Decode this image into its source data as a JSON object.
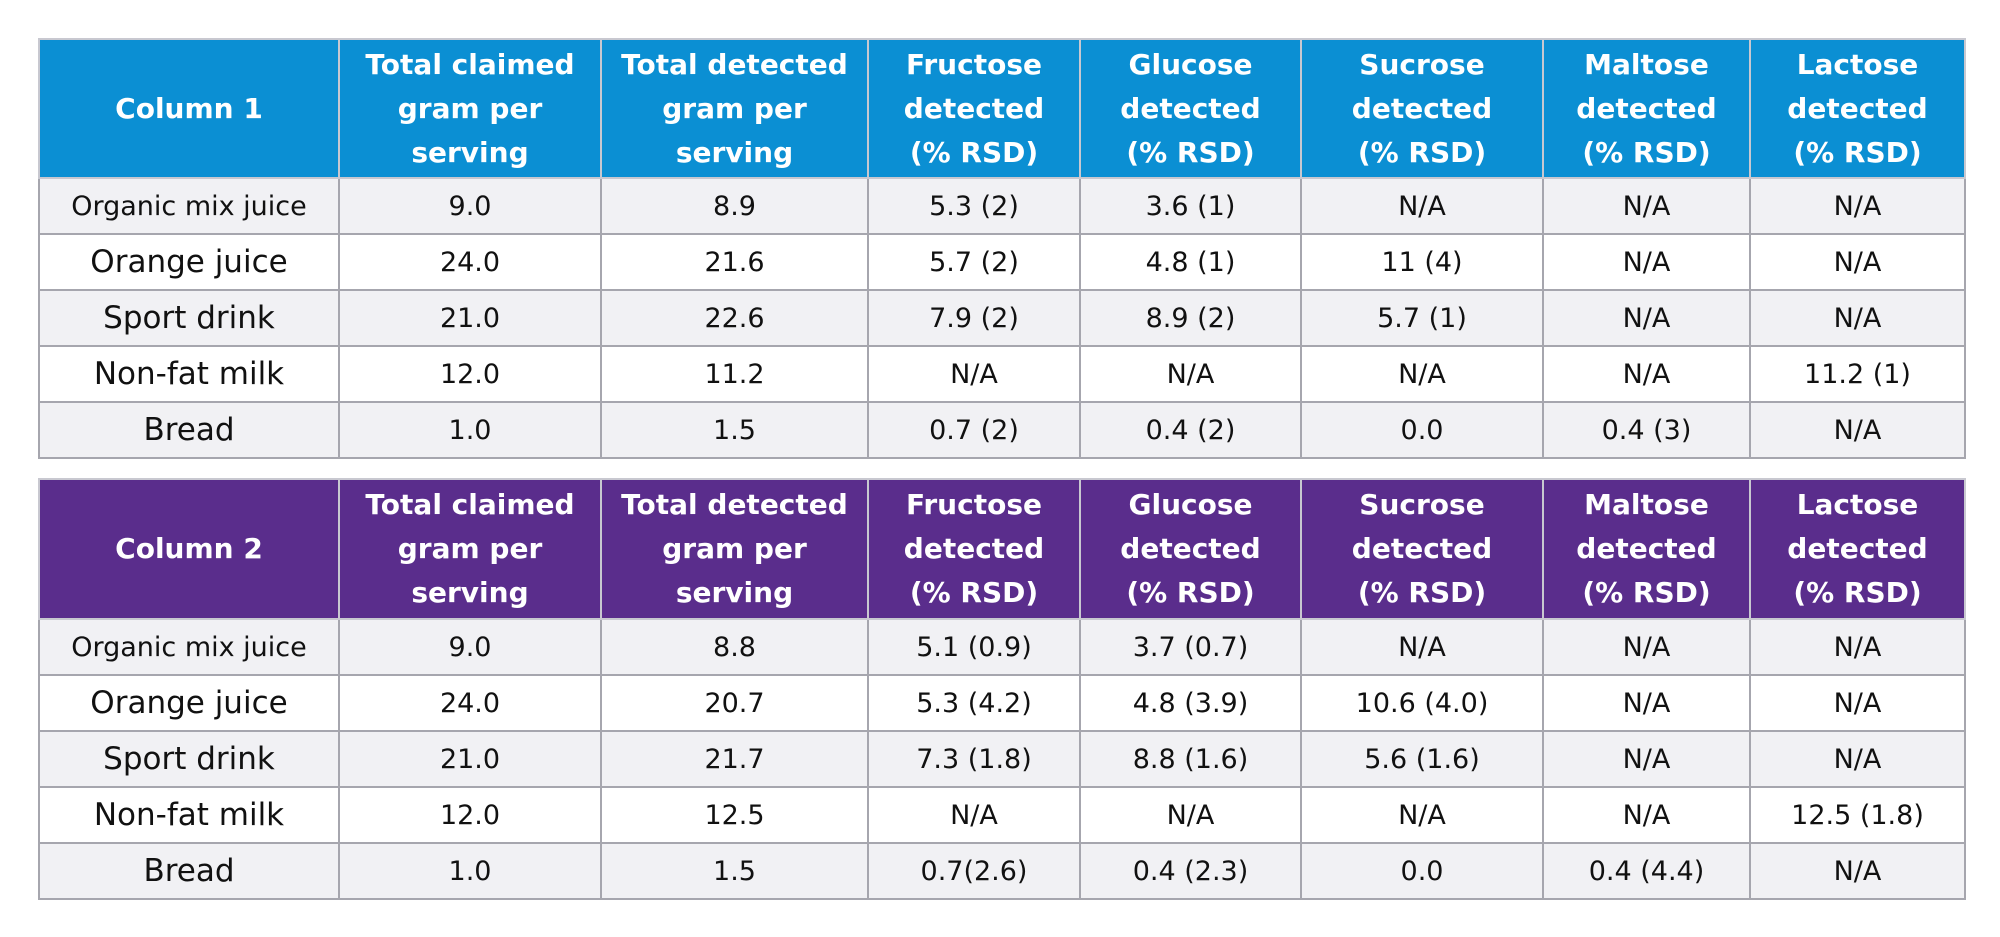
{
  "tables": [
    {
      "header": [
        [
          "Column 1"
        ],
        [
          "Total claimed",
          "gram per",
          "serving"
        ],
        [
          "Total detected",
          "gram per",
          "serving"
        ],
        [
          "Fructose",
          "detected",
          "(% RSD)"
        ],
        [
          "Glucose",
          "detected",
          "(% RSD)"
        ],
        [
          "Sucrose",
          "detected",
          "(% RSD)"
        ],
        [
          "Maltose",
          "detected",
          "(% RSD)"
        ],
        [
          "Lactose",
          "detected",
          "(% RSD)"
        ]
      ],
      "rows": [
        [
          "Organic mix juice",
          "9.0",
          "8.9",
          "5.3 (2)",
          "3.6 (1)",
          "N/A",
          "N/A",
          "N/A"
        ],
        [
          "Orange juice",
          "24.0",
          "21.6",
          "5.7 (2)",
          "4.8 (1)",
          "11 (4)",
          "N/A",
          "N/A"
        ],
        [
          "Sport drink",
          "21.0",
          "22.6",
          "7.9 (2)",
          "8.9 (2)",
          "5.7 (1)",
          "N/A",
          "N/A"
        ],
        [
          "Non-fat milk",
          "12.0",
          "11.2",
          "N/A",
          "N/A",
          "N/A",
          "N/A",
          "11.2 (1)"
        ],
        [
          "Bread",
          "1.0",
          "1.5",
          "0.7 (2)",
          "0.4 (2)",
          "0.0",
          "0.4 (3)",
          "N/A"
        ]
      ]
    },
    {
      "header": [
        [
          "Column 2"
        ],
        [
          "Total claimed",
          "gram per",
          "serving"
        ],
        [
          "Total detected",
          "gram per",
          "serving"
        ],
        [
          "Fructose",
          "detected",
          "(% RSD)"
        ],
        [
          "Glucose",
          "detected",
          "(% RSD)"
        ],
        [
          "Sucrose",
          "detected",
          "(% RSD)"
        ],
        [
          "Maltose",
          "detected",
          "(% RSD)"
        ],
        [
          "Lactose",
          "detected",
          "(% RSD)"
        ]
      ],
      "rows": [
        [
          "Organic mix juice",
          "9.0",
          "8.8",
          "5.1 (0.9)",
          "3.7 (0.7)",
          "N/A",
          "N/A",
          "N/A"
        ],
        [
          "Orange juice",
          "24.0",
          "20.7",
          "5.3 (4.2)",
          "4.8 (3.9)",
          "10.6 (4.0)",
          "N/A",
          "N/A"
        ],
        [
          "Sport drink",
          "21.0",
          "21.7",
          "7.3 (1.8)",
          "8.8 (1.6)",
          "5.6 (1.6)",
          "N/A",
          "N/A"
        ],
        [
          "Non-fat milk",
          "12.0",
          "12.5",
          "N/A",
          "N/A",
          "N/A",
          "N/A",
          "12.5 (1.8)"
        ],
        [
          "Bread",
          "1.0",
          "1.5",
          "0.7(2.6)",
          "0.4 (2.3)",
          "0.0",
          "0.4 (4.4)",
          "N/A"
        ]
      ]
    }
  ]
}
